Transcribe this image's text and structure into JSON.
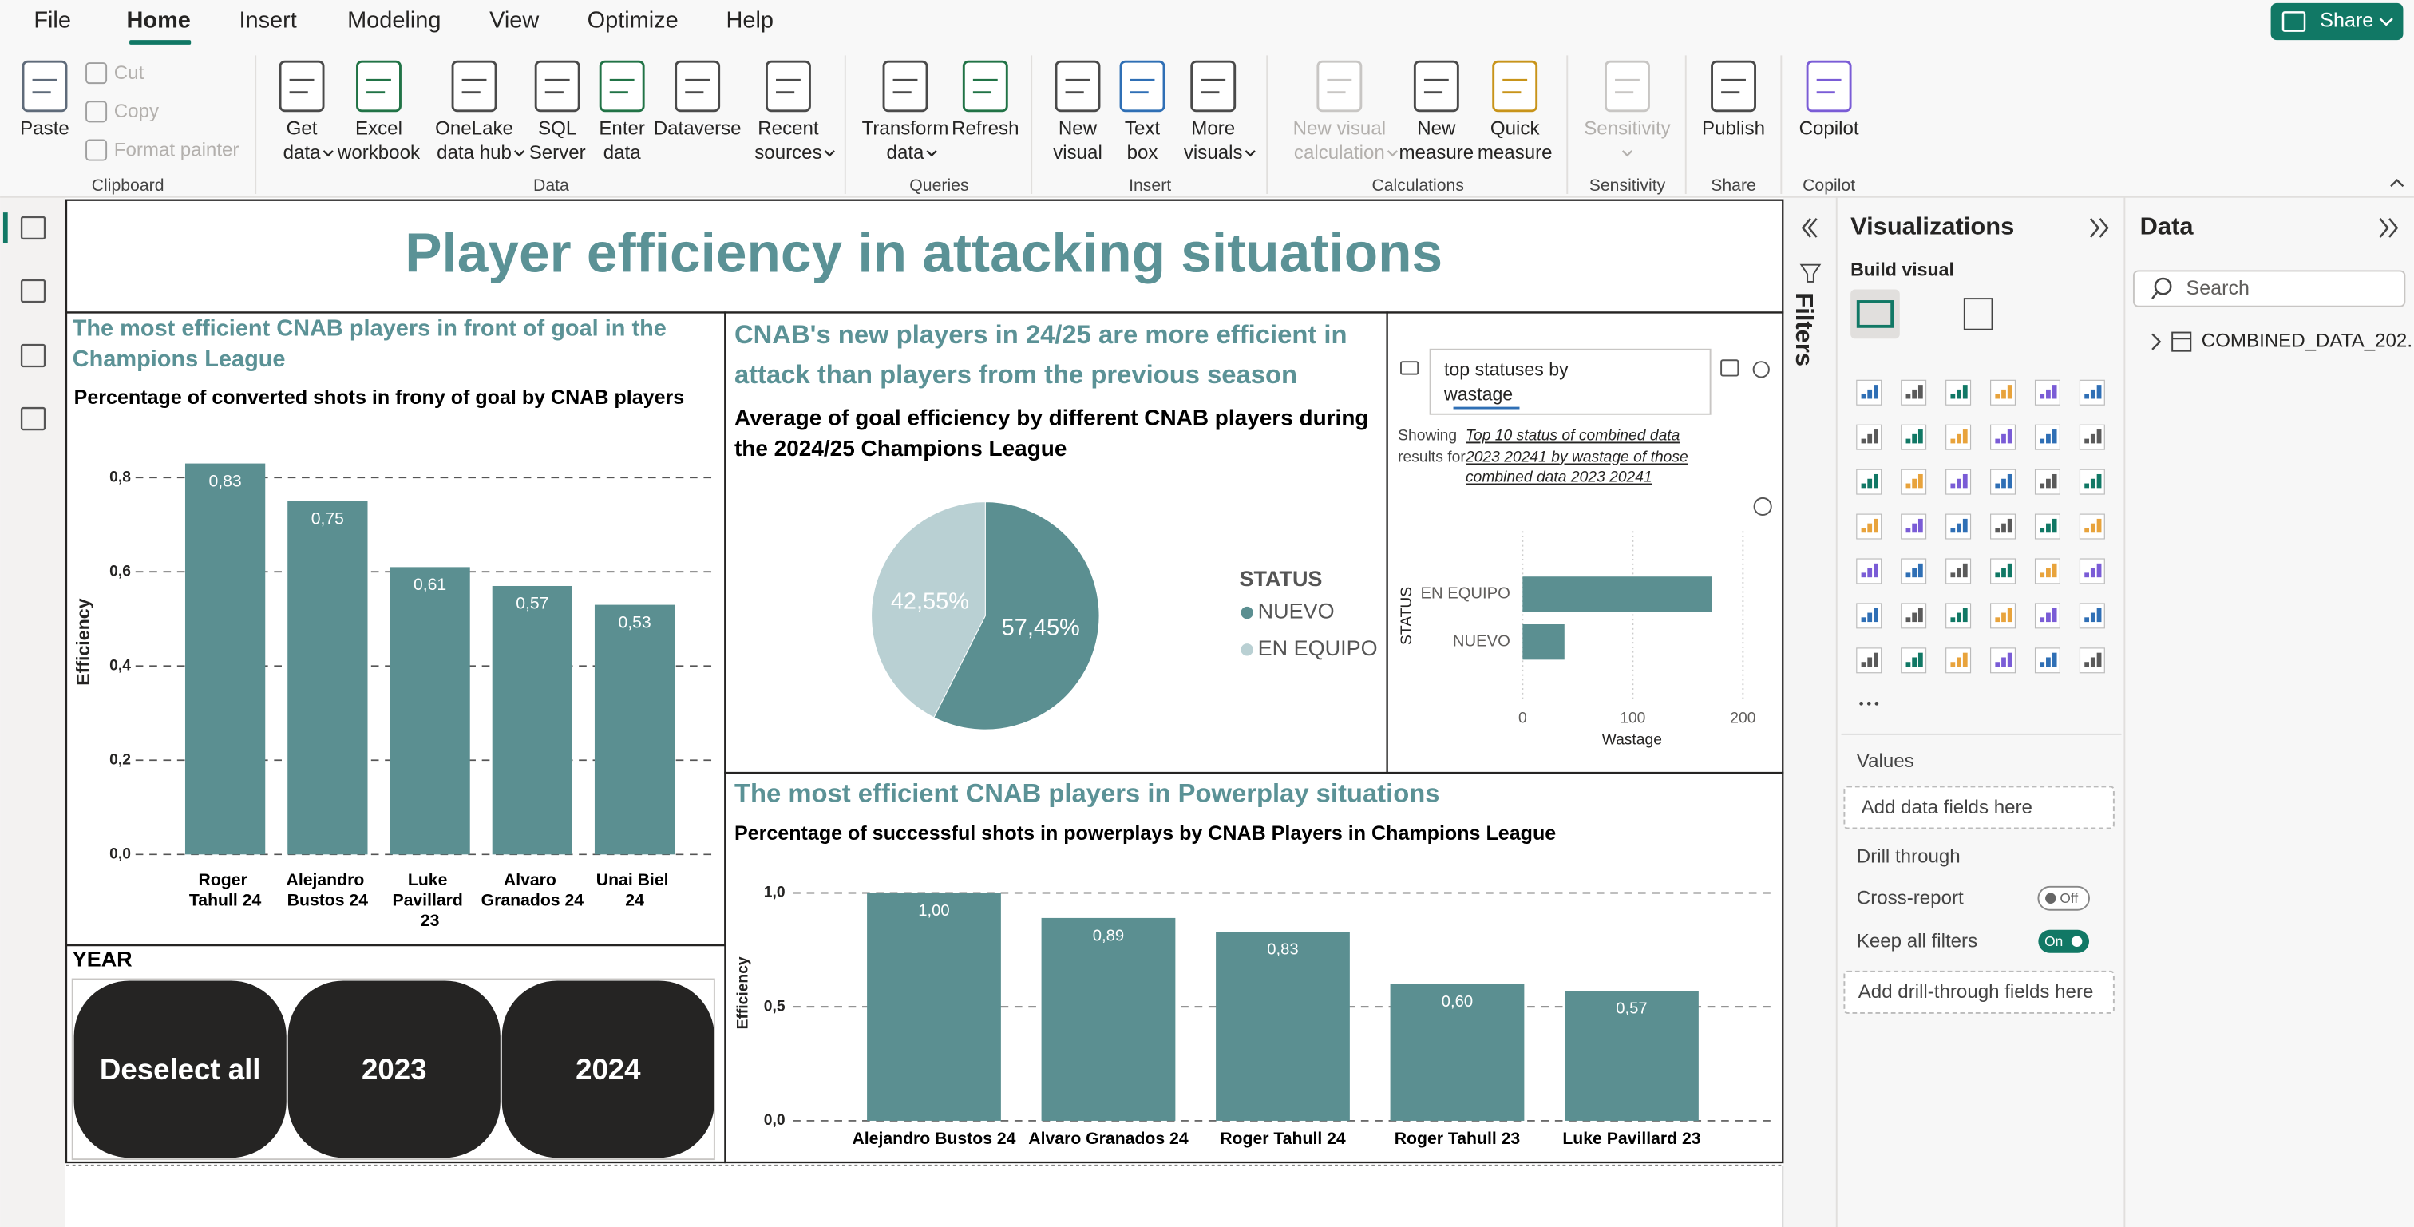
{
  "ribbon": {
    "tabs": [
      "File",
      "Home",
      "Insert",
      "Modeling",
      "View",
      "Optimize",
      "Help"
    ],
    "share": "Share",
    "groups": [
      {
        "label": "Clipboard",
        "buttons": [
          {
            "lines": [
              "Paste"
            ]
          },
          {
            "lines": [
              "Cut"
            ],
            "disabled": true
          },
          {
            "lines": [
              "Copy"
            ],
            "disabled": true
          },
          {
            "lines": [
              "Format painter"
            ],
            "disabled": true
          }
        ]
      },
      {
        "label": "Data",
        "buttons": [
          {
            "lines": [
              "Get",
              "data"
            ],
            "dropdown": true
          },
          {
            "lines": [
              "Excel",
              "workbook"
            ]
          },
          {
            "lines": [
              "OneLake",
              "data hub"
            ],
            "dropdown": true
          },
          {
            "lines": [
              "SQL",
              "Server"
            ]
          },
          {
            "lines": [
              "Enter",
              "data"
            ]
          },
          {
            "lines": [
              "Dataverse"
            ]
          },
          {
            "lines": [
              "Recent",
              "sources"
            ],
            "dropdown": true
          }
        ]
      },
      {
        "label": "Queries",
        "buttons": [
          {
            "lines": [
              "Transform",
              "data"
            ],
            "dropdown": true
          },
          {
            "lines": [
              "Refresh"
            ]
          }
        ]
      },
      {
        "label": "Insert",
        "buttons": [
          {
            "lines": [
              "New",
              "visual"
            ]
          },
          {
            "lines": [
              "Text",
              "box"
            ]
          },
          {
            "lines": [
              "More",
              "visuals"
            ],
            "dropdown": true
          }
        ]
      },
      {
        "label": "Calculations",
        "buttons": [
          {
            "lines": [
              "New visual",
              "calculation"
            ],
            "dropdown": true,
            "disabled": true
          },
          {
            "lines": [
              "New",
              "measure"
            ]
          },
          {
            "lines": [
              "Quick",
              "measure"
            ]
          }
        ]
      },
      {
        "label": "Sensitivity",
        "buttons": [
          {
            "lines": [
              "Sensitivity"
            ],
            "dropdown": true,
            "disabled": true
          }
        ]
      },
      {
        "label": "Share",
        "buttons": [
          {
            "lines": [
              "Publish"
            ]
          }
        ]
      },
      {
        "label": "Copilot",
        "buttons": [
          {
            "lines": [
              "Copilot"
            ]
          }
        ]
      }
    ]
  },
  "report_title": "Player efficiency in attacking situations",
  "chart_data": [
    {
      "type": "bar",
      "title": "The most efficient CNAB players in front of goal in the Champions League",
      "subtitle": "Percentage of converted shots in frony of goal by CNAB players",
      "ylabel": "Efficiency",
      "categories": [
        "Roger Tahull 24",
        "Alejandro Bustos 24",
        "Luke Pavillard 23",
        "Alvaro Granados 24",
        "Unai Biel 24"
      ],
      "values": [
        0.83,
        0.75,
        0.61,
        0.57,
        0.53
      ],
      "value_labels": [
        "0,83",
        "0,75",
        "0,61",
        "0,57",
        "0,53"
      ],
      "color": "#5b8f91",
      "ylim": [
        0,
        0.84
      ],
      "yticks": [
        {
          "value": 0,
          "label": "0,0"
        },
        {
          "value": 0.2,
          "label": "0,2"
        },
        {
          "value": 0.4,
          "label": "0,4"
        },
        {
          "value": 0.6,
          "label": "0,6"
        },
        {
          "value": 0.8,
          "label": "0,8"
        }
      ],
      "grid": true
    },
    {
      "type": "pie",
      "title": "CNAB's new players in 24/25 are more efficient in attack than players from the previous season",
      "subtitle": "Average of goal efficiency by different CNAB players during the 2024/25 Champions League",
      "legend_title": "STATUS",
      "categories": [
        "NUEVO",
        "EN EQUIPO"
      ],
      "values": [
        57.45,
        42.55
      ],
      "value_labels": [
        "57,45%",
        "42,55%"
      ],
      "colors": [
        "#5b8f91",
        "#b9d0d3"
      ],
      "legend": "right"
    },
    {
      "type": "hbar",
      "ylabel": "STATUS",
      "xlabel": "Wastage",
      "categories": [
        "EN EQUIPO",
        "NUEVO"
      ],
      "values": [
        172,
        38
      ],
      "color": "#5b8f91",
      "xlim": [
        0,
        211
      ],
      "xticks": [
        0,
        100,
        200
      ],
      "grid": true
    },
    {
      "type": "bar",
      "title": "The most efficient CNAB players in Powerplay situations",
      "subtitle": "Percentage of successful shots in powerplays by CNAB Players in Champions League",
      "ylabel": "Efficiency",
      "categories": [
        "Alejandro Bustos 24",
        "Alvaro Granados 24",
        "Roger Tahull 24",
        "Roger Tahull 23",
        "Luke Pavillard 23"
      ],
      "values": [
        1.0,
        0.89,
        0.83,
        0.6,
        0.57
      ],
      "value_labels": [
        "1,00",
        "0,89",
        "0,83",
        "0,60",
        "0,57"
      ],
      "color": "#5b8f91",
      "ylim": [
        0,
        1
      ],
      "yticks": [
        {
          "value": 0,
          "label": "0,0"
        },
        {
          "value": 0.5,
          "label": "0,5"
        },
        {
          "value": 1,
          "label": "1,0"
        }
      ],
      "grid": true
    }
  ],
  "qa_visual": {
    "query": "top statuses by wastage",
    "showing_results_for": "Showing results for",
    "restatement": "Top 10 status of combined data 2023 20241 by wastage of those combined data 2023 20241"
  },
  "slicer": {
    "title": "YEAR",
    "items": [
      "Deselect all",
      "2023",
      "2024"
    ]
  },
  "filters_pane": {
    "title": "Filters"
  },
  "visualizations_pane": {
    "title": "Visualizations",
    "build_visual": "Build visual",
    "values_label": "Values",
    "values_placeholder": "Add data fields here",
    "drill_through": "Drill through",
    "cross_report": "Cross-report",
    "cross_report_state": "Off",
    "keep_all_filters": "Keep all filters",
    "keep_all_filters_state": "On",
    "drill_placeholder": "Add drill-through fields here"
  },
  "data_pane": {
    "title": "Data",
    "search_placeholder": "Search",
    "tables": [
      "COMBINED_DATA_202..."
    ]
  }
}
